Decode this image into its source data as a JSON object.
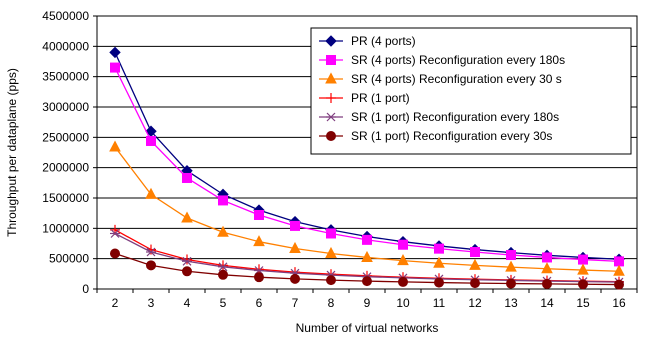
{
  "chart_data": {
    "type": "line",
    "title": "",
    "xlabel": "Number of virtual networks",
    "ylabel": "Throughput per dataplane (pps)",
    "x": [
      2,
      3,
      4,
      5,
      6,
      7,
      8,
      9,
      10,
      11,
      12,
      13,
      14,
      15,
      16
    ],
    "ylim": [
      0,
      4500000
    ],
    "yticks": [
      "0",
      "500000",
      "1000000",
      "1500000",
      "2000000",
      "2500000",
      "3000000",
      "3500000",
      "4000000",
      "4500000"
    ],
    "grid": "horizontal",
    "legend_position": "top-right",
    "series": [
      {
        "name": "PR (4 ports)",
        "color": "#000080",
        "marker": "diamond",
        "values": [
          3900000,
          2600000,
          1950000,
          1560000,
          1300000,
          1110000,
          975000,
          865000,
          780000,
          710000,
          650000,
          600000,
          555000,
          520000,
          490000
        ]
      },
      {
        "name": "SR (4 ports) Reconfiguration every 180s",
        "color": "#ff00ff",
        "marker": "square",
        "values": [
          3650000,
          2440000,
          1830000,
          1460000,
          1220000,
          1040000,
          915000,
          810000,
          730000,
          665000,
          610000,
          560000,
          520000,
          485000,
          455000
        ]
      },
      {
        "name": "SR (4 ports) Reconfiguration every 30 s",
        "color": "#ff8000",
        "marker": "triangle",
        "values": [
          2340000,
          1560000,
          1170000,
          935000,
          780000,
          668000,
          585000,
          520000,
          468000,
          425000,
          390000,
          360000,
          334000,
          312000,
          292000
        ]
      },
      {
        "name": "PR (1 port)",
        "color": "#ff0000",
        "marker": "plus",
        "values": [
          975000,
          650000,
          487000,
          390000,
          325000,
          278000,
          244000,
          217000,
          195000,
          177000,
          162000,
          150000,
          139000,
          130000,
          122000
        ]
      },
      {
        "name": "SR (1 port) Reconfiguration every 180s",
        "color": "#7f3f7f",
        "marker": "star",
        "values": [
          915000,
          610000,
          457000,
          366000,
          305000,
          261000,
          229000,
          203000,
          183000,
          166000,
          152000,
          141000,
          131000,
          122000,
          114000
        ]
      },
      {
        "name": "SR (1 port) Reconfiguration every 30s",
        "color": "#800000",
        "marker": "circle",
        "values": [
          585000,
          390000,
          292000,
          234000,
          195000,
          167000,
          146000,
          130000,
          117000,
          106000,
          97000,
          90000,
          84000,
          78000,
          73000
        ]
      }
    ]
  }
}
